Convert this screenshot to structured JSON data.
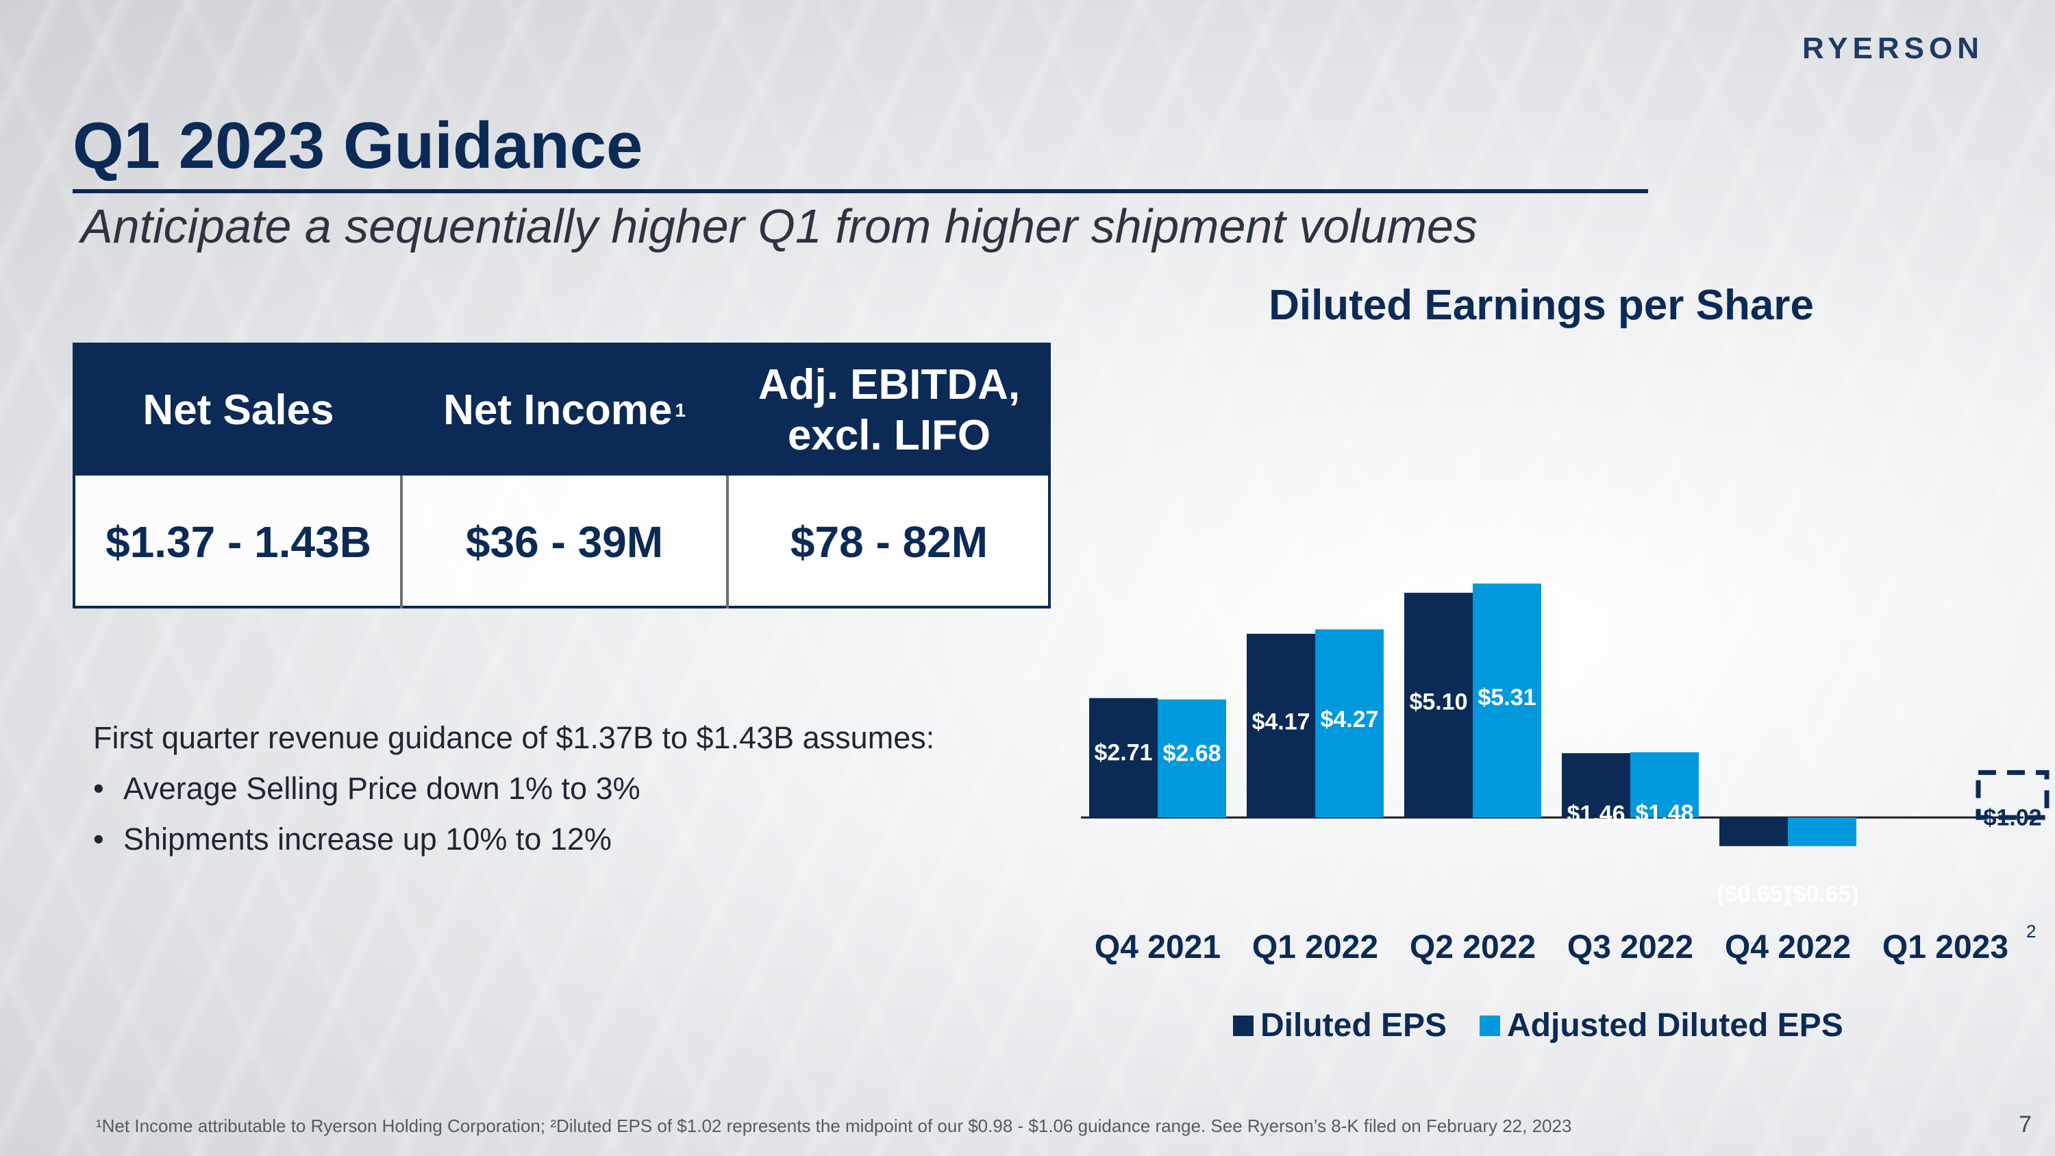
{
  "logo": "RYERSON",
  "title": "Q1 2023 Guidance",
  "subtitle": "Anticipate a sequentially higher Q1 from higher shipment volumes",
  "guidance_table": {
    "headers": [
      "Net Sales",
      "Net Income",
      "Adj. EBITDA,\nexcl. LIFO"
    ],
    "net_income_footnote": "1",
    "values": [
      "$1.37 - 1.43B",
      "$36 - 39M",
      "$78 - 82M"
    ]
  },
  "body": {
    "intro": "First quarter revenue guidance of $1.37B to $1.43B assumes:",
    "bullets": [
      "Average Selling Price down 1% to 3%",
      "Shipments increase up 10% to 12%"
    ]
  },
  "colors": {
    "navy": "#0b2a55",
    "diluted": "#0b2a55",
    "adjusted": "#0099dd"
  },
  "chart_data": {
    "type": "bar",
    "title": "Diluted Earnings per Share",
    "categories": [
      "Q4 2021",
      "Q1 2022",
      "Q2 2022",
      "Q3 2022",
      "Q4 2022",
      "Q1 2023"
    ],
    "category_superscript": {
      "index": 5,
      "text": "2"
    },
    "series": [
      {
        "name": "Diluted EPS",
        "color": "#0b2a55",
        "values": [
          2.71,
          4.17,
          5.1,
          1.46,
          -0.65,
          1.02
        ],
        "labels": [
          "$2.71",
          "$4.17",
          "$5.10",
          "$1.46",
          "($0.65)",
          "$1.02"
        ]
      },
      {
        "name": "Adjusted Diluted EPS",
        "color": "#0099dd",
        "values": [
          2.68,
          4.27,
          5.31,
          1.48,
          -0.65,
          null
        ],
        "labels": [
          "$2.68",
          "$4.27",
          "$5.31",
          "$1.48",
          "($0.65)",
          ""
        ]
      }
    ],
    "guidance_point": {
      "category": "Q1 2023",
      "style": "dashed-outline"
    },
    "legend_position": "bottom",
    "grid": false
  },
  "footnote": "¹Net Income attributable to Ryerson Holding Corporation; ²Diluted EPS of $1.02 represents the midpoint of our $0.98 - $1.06 guidance range. See Ryerson’s 8-K filed on February 22, 2023",
  "page_number": "7"
}
